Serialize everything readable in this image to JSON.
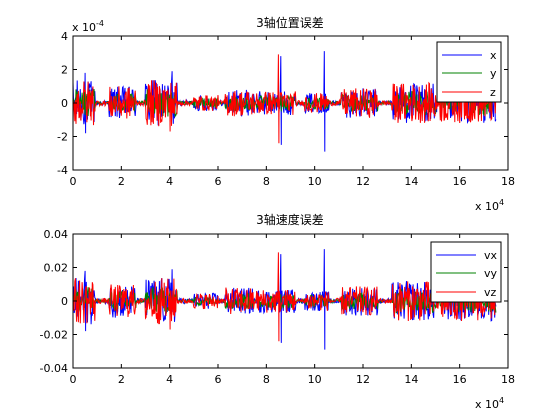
{
  "chart_data": [
    {
      "type": "line",
      "title": "3轴位置误差",
      "xlabel": "",
      "ylabel": "",
      "xlim": [
        0,
        18
      ],
      "ylim": [
        -4,
        4
      ],
      "x_ticks": [
        "0",
        "2",
        "4",
        "6",
        "8",
        "10",
        "12",
        "14",
        "16",
        "18"
      ],
      "y_ticks": [
        "-4",
        "-2",
        "0",
        "2",
        "4"
      ],
      "y_tick_values": [
        -4,
        -2,
        0,
        2,
        4
      ],
      "x_multiplier_label": "x 10",
      "x_multiplier_exp": "4",
      "y_multiplier_label": "x 10",
      "y_multiplier_exp": "-4",
      "legend_position": "top-right",
      "series": [
        {
          "name": "x",
          "color": "#0000ff",
          "spikes": [
            [
              0.5,
              1.8,
              -1.8
            ],
            [
              4.1,
              1.9,
              -0.4
            ],
            [
              8.6,
              2.8,
              -2.5
            ],
            [
              10.4,
              3.1,
              -2.9
            ]
          ]
        },
        {
          "name": "y",
          "color": "#008000",
          "spikes": [
            [
              4.0,
              0.5,
              -0.4
            ],
            [
              8.6,
              0.4,
              -0.5
            ]
          ]
        },
        {
          "name": "z",
          "color": "#ff0000",
          "spikes": [
            [
              0.7,
              0.7,
              -0.8
            ],
            [
              4.0,
              0.3,
              -1.7
            ],
            [
              8.5,
              2.9,
              -2.4
            ],
            [
              3.6,
              0.7,
              -0.4
            ]
          ]
        }
      ]
    },
    {
      "type": "line",
      "title": "3轴速度误差",
      "xlabel": "",
      "ylabel": "",
      "xlim": [
        0,
        18
      ],
      "ylim": [
        -0.04,
        0.04
      ],
      "x_ticks": [
        "0",
        "2",
        "4",
        "6",
        "8",
        "10",
        "12",
        "14",
        "16",
        "18"
      ],
      "y_ticks": [
        "-0.04",
        "-0.02",
        "0",
        "0.02",
        "0.04"
      ],
      "y_tick_values": [
        -0.04,
        -0.02,
        0,
        0.02,
        0.04
      ],
      "x_multiplier_label": "x 10",
      "x_multiplier_exp": "4",
      "legend_position": "top-right",
      "series": [
        {
          "name": "vx",
          "color": "#0000ff",
          "spikes": [
            [
              0.5,
              0.018,
              -0.018
            ],
            [
              4.1,
              0.019,
              -0.004
            ],
            [
              8.6,
              0.028,
              -0.025
            ],
            [
              10.4,
              0.031,
              -0.029
            ]
          ]
        },
        {
          "name": "vy",
          "color": "#008000",
          "spikes": [
            [
              4.0,
              0.005,
              -0.004
            ],
            [
              8.6,
              0.004,
              -0.005
            ]
          ]
        },
        {
          "name": "vz",
          "color": "#ff0000",
          "spikes": [
            [
              0.7,
              0.007,
              -0.008
            ],
            [
              4.0,
              0.003,
              -0.017
            ],
            [
              8.5,
              0.029,
              -0.024
            ],
            [
              3.6,
              0.007,
              -0.004
            ]
          ]
        }
      ]
    }
  ]
}
